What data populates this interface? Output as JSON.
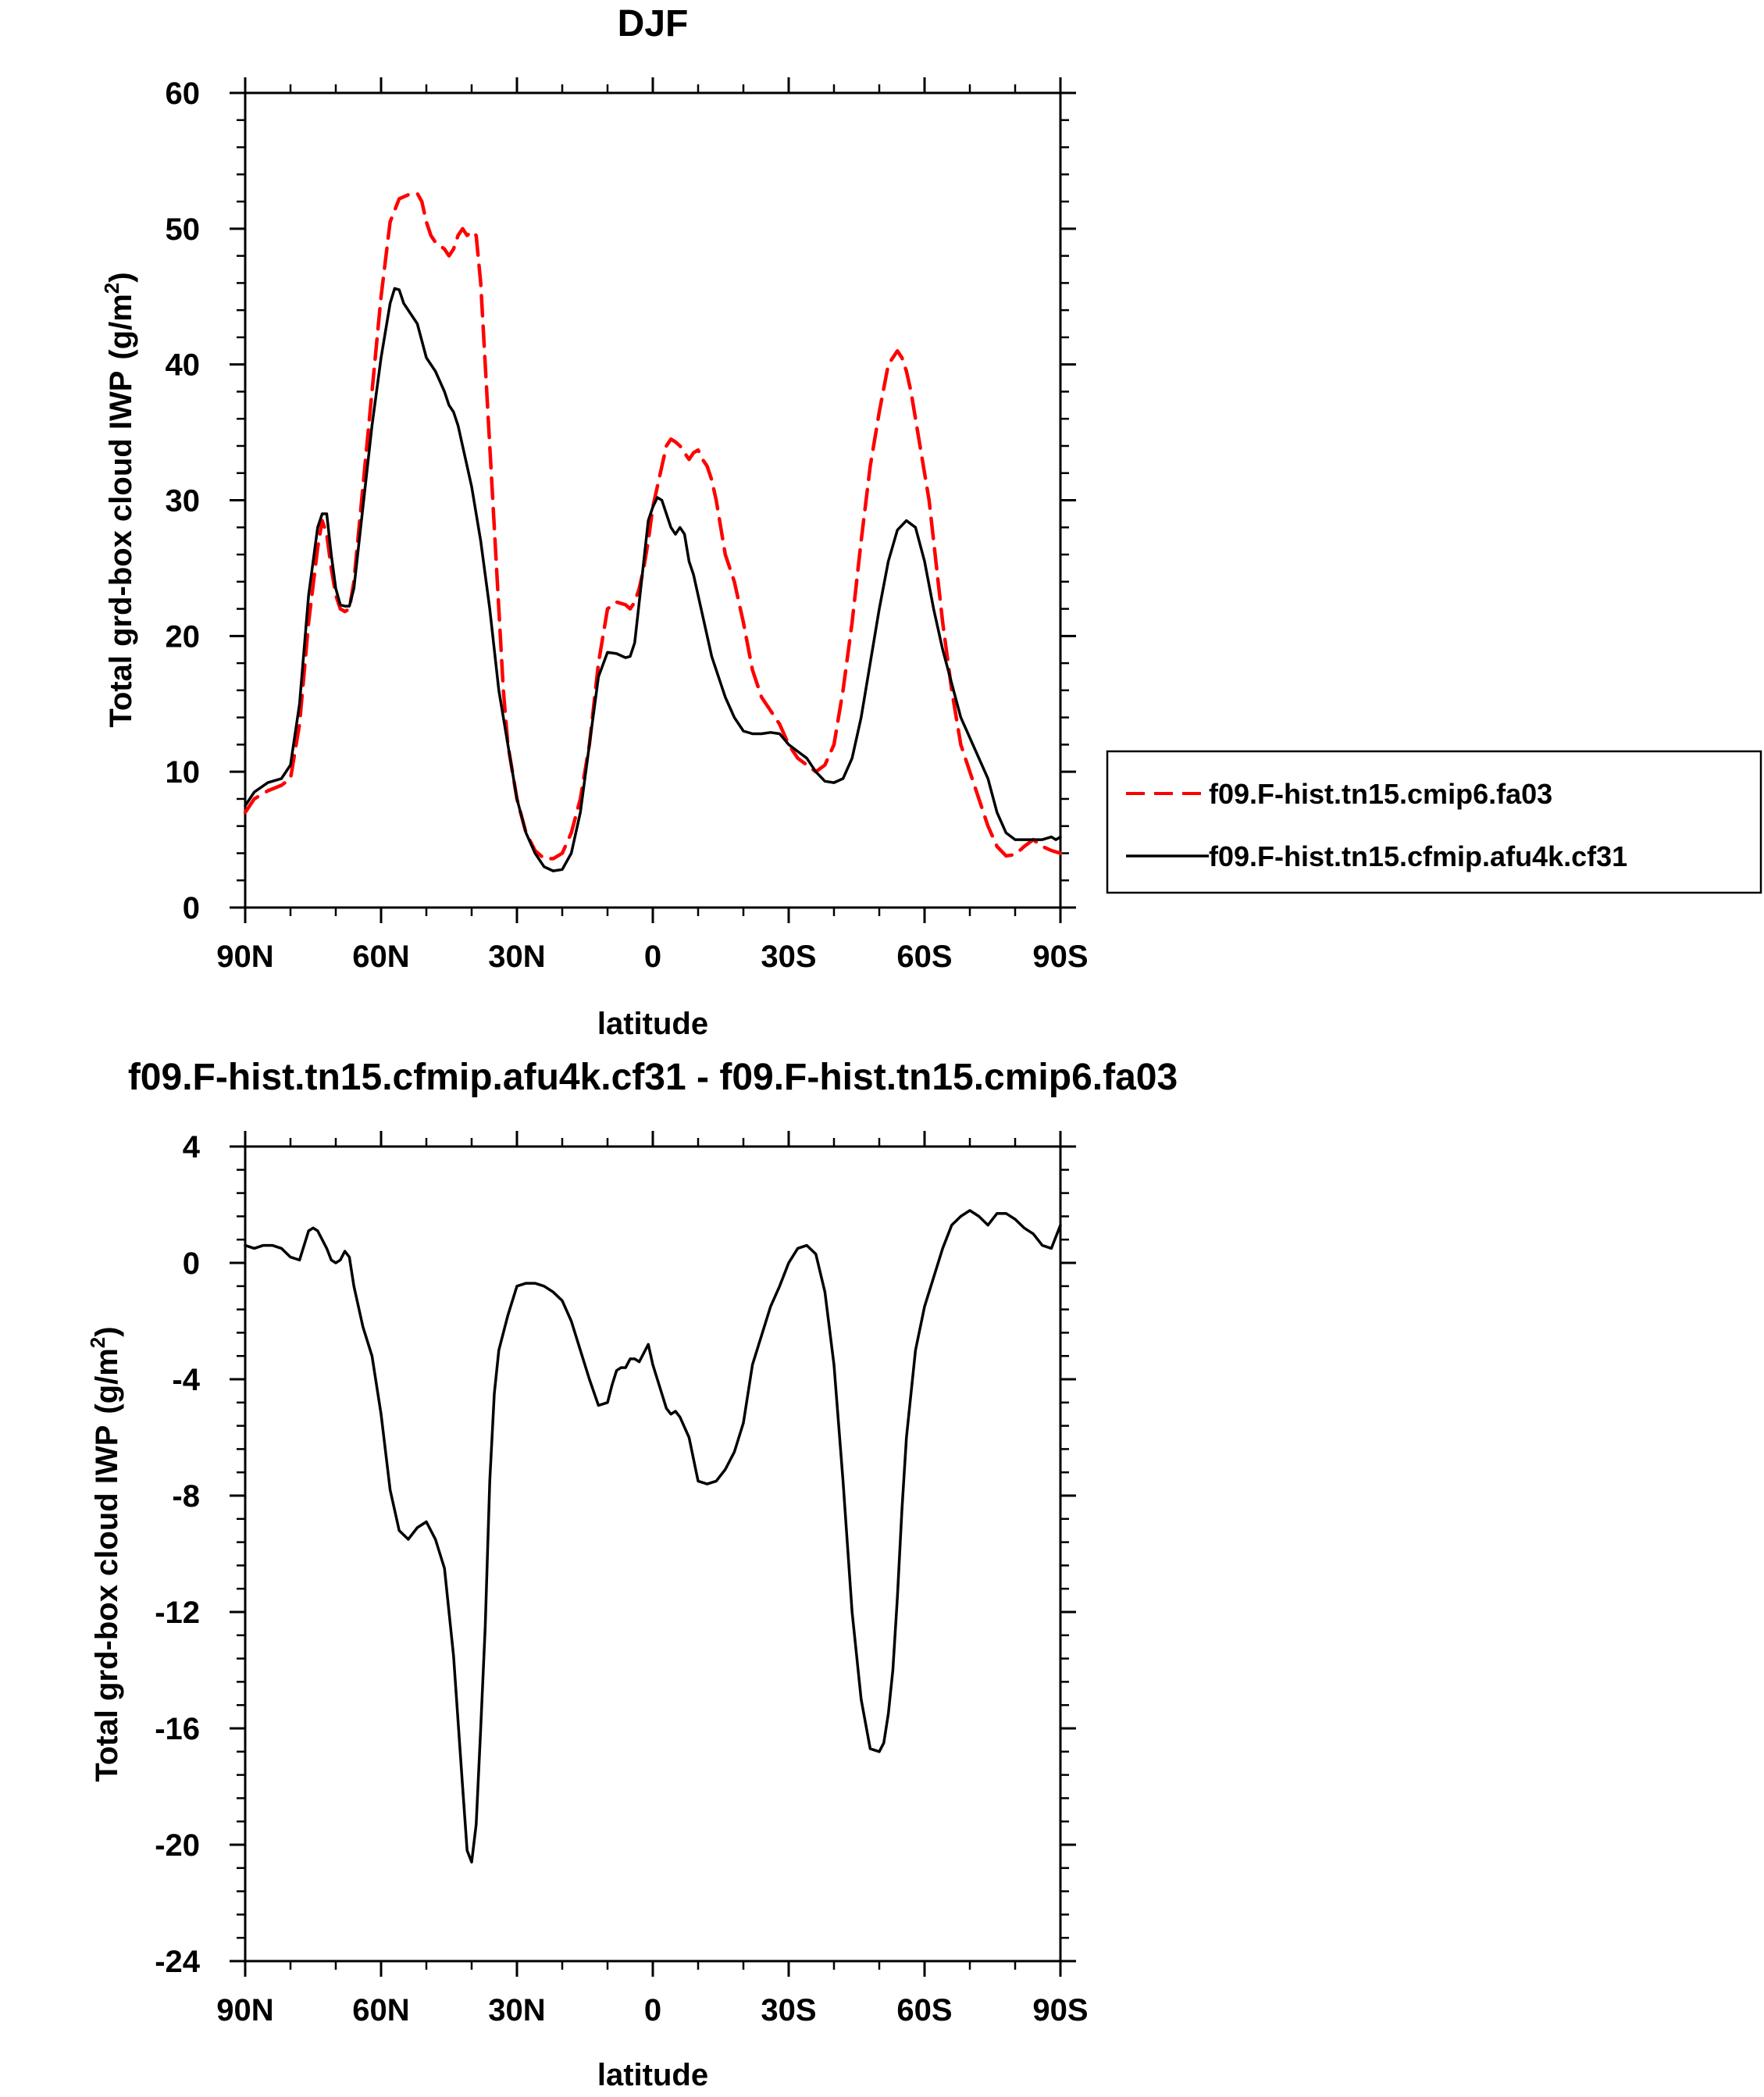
{
  "chart_data": [
    {
      "type": "line",
      "title": "DJF",
      "xlabel": "latitude",
      "ylabel": "Total grd-box cloud IWP",
      "ylabel_unit": "(g/m",
      "ylabel_unit_sup": "2",
      "ylabel_unit_close": ")",
      "xlim": [
        90,
        -90
      ],
      "ylim": [
        0,
        60
      ],
      "x_ticks": [
        90,
        60,
        30,
        0,
        -30,
        -60,
        -90
      ],
      "x_tick_labels": [
        "90N",
        "60N",
        "30N",
        "0",
        "30S",
        "60S",
        "90S"
      ],
      "y_ticks": [
        0,
        10,
        20,
        30,
        40,
        50,
        60
      ],
      "y_tick_labels": [
        "0",
        "10",
        "20",
        "30",
        "40",
        "50",
        "60"
      ],
      "grid": false,
      "legend_position": "right-outside",
      "series": [
        {
          "name": "f09.F-hist.tn15.cmip6.fa03",
          "color": "#ff0000",
          "dash": "dashed",
          "x": [
            90,
            88,
            85,
            82,
            80,
            78,
            76,
            74,
            73,
            72,
            71,
            70,
            69,
            68,
            67,
            66,
            64,
            62,
            60,
            58,
            56,
            54,
            52,
            51,
            50,
            49,
            48,
            46,
            45,
            44,
            43,
            42,
            41,
            40,
            39,
            38,
            37,
            36,
            35,
            34,
            33,
            32,
            30,
            28,
            26,
            24,
            22,
            20,
            18,
            16,
            14,
            12,
            10,
            8,
            6,
            5,
            4,
            3,
            2,
            1,
            0,
            -1,
            -2,
            -3,
            -4,
            -5,
            -6,
            -7,
            -8,
            -9,
            -10,
            -11,
            -12,
            -13,
            -14,
            -16,
            -18,
            -20,
            -22,
            -24,
            -26,
            -28,
            -30,
            -32,
            -34,
            -36,
            -38,
            -40,
            -42,
            -44,
            -46,
            -48,
            -50,
            -52,
            -54,
            -55,
            -56,
            -57,
            -58,
            -59,
            -60,
            -61,
            -62,
            -64,
            -66,
            -68,
            -70,
            -72,
            -74,
            -76,
            -78,
            -80,
            -82,
            -84,
            -86,
            -88,
            -90
          ],
          "y": [
            7.0,
            8.0,
            8.6,
            9.0,
            9.5,
            13.5,
            21.0,
            26.5,
            28.5,
            27.5,
            25.0,
            23.0,
            22.0,
            21.8,
            22.0,
            24.0,
            31.0,
            38.0,
            45.0,
            50.5,
            52.2,
            52.5,
            52.6,
            52.0,
            50.5,
            49.5,
            49.0,
            48.5,
            48.0,
            48.5,
            49.5,
            50.0,
            49.5,
            49.8,
            49.5,
            46.0,
            40.0,
            34.0,
            28.0,
            22.0,
            16.0,
            12.0,
            8.0,
            5.5,
            4.2,
            3.6,
            3.6,
            4.0,
            5.5,
            8.0,
            12.0,
            18.0,
            22.0,
            22.5,
            22.3,
            22.0,
            22.5,
            23.5,
            25.0,
            27.0,
            29.5,
            31.0,
            32.5,
            34.0,
            34.5,
            34.3,
            34.0,
            33.5,
            33.0,
            33.5,
            33.7,
            33.0,
            32.5,
            31.5,
            30.0,
            26.0,
            24.0,
            21.0,
            17.5,
            15.5,
            14.5,
            13.5,
            12.0,
            11.0,
            10.5,
            10.0,
            10.5,
            12.0,
            16.0,
            21.0,
            27.0,
            32.5,
            36.5,
            40.0,
            41.0,
            40.5,
            39.5,
            38.0,
            36.0,
            34.0,
            32.0,
            30.0,
            27.0,
            21.0,
            16.0,
            12.0,
            10.0,
            8.0,
            6.0,
            4.5,
            3.8,
            3.9,
            4.5,
            5.0,
            4.5,
            4.2,
            4.0
          ]
        },
        {
          "name": "f09.F-hist.tn15.cfmip.afu4k.cf31",
          "color": "#000000",
          "dash": "solid",
          "x": [
            90,
            88,
            85,
            82,
            80,
            78,
            76,
            74,
            73,
            72,
            71,
            70,
            69,
            68,
            67,
            66,
            64,
            62,
            60,
            58,
            57,
            56,
            55,
            54,
            52,
            50,
            48,
            46,
            45,
            44,
            43,
            42,
            41,
            40,
            39,
            38,
            36,
            34,
            32,
            30,
            28,
            26,
            24,
            22,
            20,
            18,
            16,
            14,
            12,
            10,
            8,
            6,
            5,
            4,
            3,
            2,
            1,
            0,
            -1,
            -2,
            -3,
            -4,
            -5,
            -6,
            -7,
            -8,
            -9,
            -10,
            -11,
            -12,
            -13,
            -14,
            -16,
            -18,
            -20,
            -22,
            -24,
            -26,
            -28,
            -30,
            -32,
            -34,
            -36,
            -38,
            -40,
            -42,
            -44,
            -46,
            -48,
            -50,
            -52,
            -54,
            -56,
            -58,
            -60,
            -62,
            -64,
            -66,
            -68,
            -70,
            -72,
            -74,
            -76,
            -78,
            -80,
            -82,
            -84,
            -86,
            -88,
            -89,
            -90
          ],
          "y": [
            7.5,
            8.5,
            9.2,
            9.5,
            10.5,
            15.0,
            23.0,
            28.0,
            29.0,
            29.0,
            26.0,
            23.5,
            22.3,
            22.2,
            22.2,
            23.5,
            29.5,
            35.5,
            40.5,
            44.5,
            45.6,
            45.5,
            44.5,
            44.0,
            43.0,
            40.5,
            39.5,
            38.0,
            37.0,
            36.5,
            35.5,
            34.0,
            32.5,
            31.0,
            29.0,
            27.0,
            22.0,
            16.0,
            12.0,
            8.0,
            5.5,
            4.0,
            3.0,
            2.7,
            2.8,
            4.0,
            7.0,
            12.0,
            17.0,
            18.8,
            18.7,
            18.4,
            18.5,
            19.5,
            22.5,
            25.5,
            28.5,
            29.5,
            30.2,
            30.0,
            29.0,
            28.0,
            27.5,
            28.0,
            27.5,
            25.5,
            24.5,
            23.0,
            21.5,
            20.0,
            18.5,
            17.5,
            15.5,
            14.0,
            13.0,
            12.8,
            12.8,
            12.9,
            12.8,
            12.0,
            11.5,
            11.0,
            10.0,
            9.3,
            9.2,
            9.5,
            11.0,
            14.0,
            18.0,
            22.0,
            25.5,
            27.8,
            28.5,
            28.0,
            25.5,
            22.0,
            19.0,
            16.5,
            14.0,
            12.5,
            11.0,
            9.5,
            7.0,
            5.5,
            5.0,
            5.0,
            5.0,
            5.0,
            5.2,
            5.0,
            5.2
          ]
        }
      ]
    },
    {
      "type": "line",
      "title": "f09.F-hist.tn15.cfmip.afu4k.cf31 - f09.F-hist.tn15.cmip6.fa03",
      "xlabel": "latitude",
      "ylabel": "Total grd-box cloud IWP",
      "ylabel_unit": "(g/m",
      "ylabel_unit_sup": "2",
      "ylabel_unit_close": ")",
      "xlim": [
        90,
        -90
      ],
      "ylim": [
        -24,
        4
      ],
      "x_ticks": [
        90,
        60,
        30,
        0,
        -30,
        -60,
        -90
      ],
      "x_tick_labels": [
        "90N",
        "60N",
        "30N",
        "0",
        "30S",
        "60S",
        "90S"
      ],
      "y_ticks": [
        -24,
        -20,
        -16,
        -12,
        -8,
        -4,
        0,
        4
      ],
      "y_tick_labels": [
        "-24",
        "-20",
        "-16",
        "-12",
        "-8",
        "-4",
        "0",
        "4"
      ],
      "grid": false,
      "series": [
        {
          "color": "#000000",
          "dash": "solid",
          "x": [
            90,
            88,
            86,
            84,
            82,
            80,
            78,
            77,
            76,
            75,
            74,
            73,
            72,
            71,
            70,
            69,
            68,
            67,
            66,
            64,
            62,
            60,
            58,
            56,
            54,
            52,
            50,
            48,
            46,
            44,
            42,
            41,
            40,
            39,
            38,
            37,
            36,
            35,
            34,
            32,
            30,
            28,
            26,
            24,
            22,
            20,
            18,
            16,
            14,
            12,
            10,
            9,
            8,
            7,
            6,
            5,
            4,
            3,
            2,
            1,
            0,
            -1,
            -2,
            -3,
            -4,
            -5,
            -6,
            -8,
            -10,
            -12,
            -14,
            -15,
            -16,
            -17,
            -18,
            -20,
            -22,
            -24,
            -26,
            -28,
            -30,
            -32,
            -34,
            -36,
            -38,
            -40,
            -42,
            -44,
            -46,
            -48,
            -50,
            -51,
            -52,
            -53,
            -54,
            -55,
            -56,
            -58,
            -60,
            -62,
            -64,
            -66,
            -68,
            -70,
            -72,
            -74,
            -76,
            -78,
            -80,
            -82,
            -84,
            -86,
            -88,
            -90
          ],
          "y": [
            0.6,
            0.5,
            0.6,
            0.6,
            0.5,
            0.2,
            0.1,
            0.6,
            1.1,
            1.2,
            1.1,
            0.8,
            0.5,
            0.1,
            0.0,
            0.1,
            0.4,
            0.2,
            -0.8,
            -2.2,
            -3.2,
            -5.2,
            -7.8,
            -9.2,
            -9.5,
            -9.1,
            -8.9,
            -9.5,
            -10.5,
            -13.5,
            -18.0,
            -20.2,
            -20.6,
            -19.3,
            -16.0,
            -12.5,
            -7.5,
            -4.5,
            -3.0,
            -1.8,
            -0.8,
            -0.7,
            -0.7,
            -0.8,
            -1.0,
            -1.3,
            -2.0,
            -3.0,
            -4.0,
            -4.9,
            -4.8,
            -4.2,
            -3.7,
            -3.6,
            -3.6,
            -3.3,
            -3.3,
            -3.4,
            -3.1,
            -2.8,
            -3.5,
            -4.0,
            -4.5,
            -5.0,
            -5.2,
            -5.1,
            -5.3,
            -6.0,
            -7.5,
            -7.6,
            -7.5,
            -7.3,
            -7.1,
            -6.8,
            -6.5,
            -5.5,
            -3.5,
            -2.5,
            -1.5,
            -0.8,
            0.0,
            0.5,
            0.6,
            0.3,
            -1.0,
            -3.5,
            -7.5,
            -12.0,
            -15.0,
            -16.7,
            -16.8,
            -16.5,
            -15.5,
            -14.0,
            -11.5,
            -8.5,
            -6.0,
            -3.0,
            -1.5,
            -0.5,
            0.5,
            1.3,
            1.6,
            1.8,
            1.6,
            1.3,
            1.7,
            1.7,
            1.5,
            1.2,
            1.0,
            0.6,
            0.5,
            1.3
          ]
        }
      ]
    }
  ]
}
